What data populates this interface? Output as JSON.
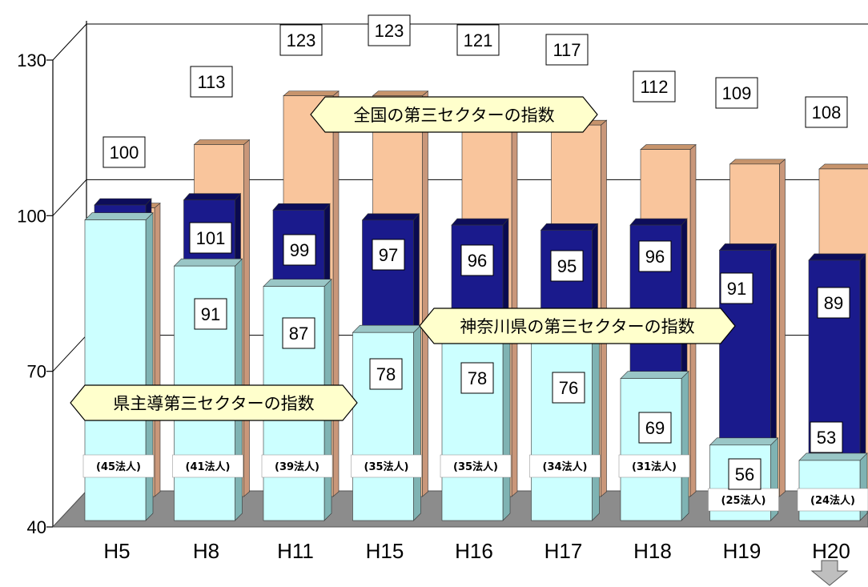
{
  "chart_data": {
    "type": "bar",
    "categories": [
      "H5",
      "H8",
      "H11",
      "H15",
      "H16",
      "H17",
      "H18",
      "H19",
      "H20"
    ],
    "series": [
      {
        "name": "全国の第三セクターの指数",
        "values": [
          100,
          113,
          123,
          123,
          121,
          117,
          112,
          109,
          108
        ]
      },
      {
        "name": "神奈川県の第三セクターの指数",
        "values": [
          100,
          101,
          99,
          97,
          96,
          95,
          96,
          91,
          89
        ]
      },
      {
        "name": "県主導第三セクターの指数",
        "values": [
          100,
          91,
          87,
          78,
          78,
          76,
          69,
          56,
          53
        ]
      }
    ],
    "counts": [
      "(45法人)",
      "(41法人)",
      "(39法人)",
      "(35法人)",
      "(35法人)",
      "(34法人)",
      "(31法人)",
      "(25法人)",
      "(24法人)"
    ],
    "y_ticks": [
      40,
      70,
      100,
      130
    ],
    "ylim": [
      40,
      130
    ],
    "grid": true,
    "colors": {
      "national": "#f9c59c",
      "national_top": "#c7946c",
      "kanagawa": "#1a1a8c",
      "kanagawa_top": "#0d0d5a",
      "prefecture": "#ccffff",
      "prefecture_top": "#99c6c6",
      "floor": "#8c8c8c",
      "legend_fill": "#ffffcc"
    }
  }
}
